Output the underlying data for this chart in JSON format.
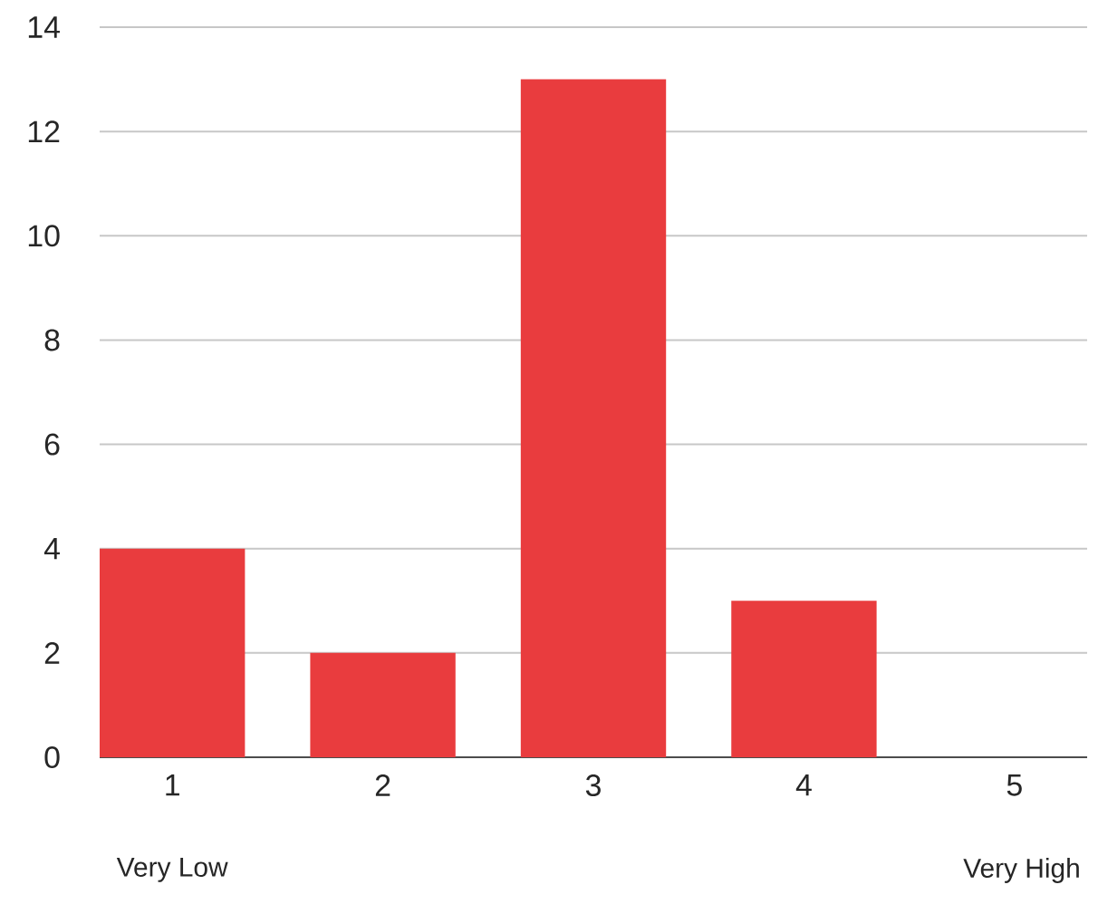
{
  "chart_data": {
    "type": "bar",
    "categories": [
      "1",
      "2",
      "3",
      "4",
      "5"
    ],
    "values": [
      4,
      2,
      13,
      3,
      0
    ],
    "color": "#e93c3e",
    "ylim": [
      0,
      14
    ],
    "yticks": [
      0,
      2,
      4,
      6,
      8,
      10,
      12,
      14
    ],
    "grid": "y",
    "annotations": [
      "Very Low",
      "Very High"
    ]
  }
}
